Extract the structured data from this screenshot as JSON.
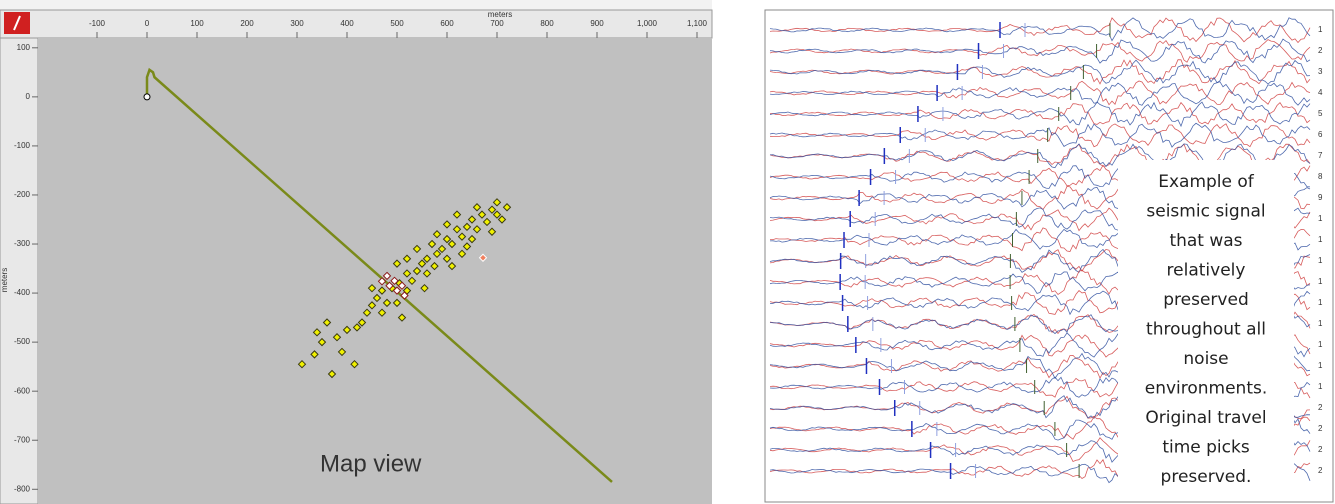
{
  "chart_data": {
    "type": "scatter",
    "annotation": "Map view",
    "xlabel": "meters",
    "ylabel": "meters",
    "xlim": [
      -218,
      1130
    ],
    "ylim": [
      -830,
      120
    ],
    "xticks": [
      -100,
      0,
      100,
      200,
      300,
      400,
      500,
      600,
      700,
      800,
      900,
      {
        "value": 1000,
        "label": "1,000"
      },
      {
        "value": 1100,
        "label": "1,100"
      }
    ],
    "yticks": [
      100,
      0,
      -100,
      -200,
      -300,
      -400,
      -500,
      -600,
      -700,
      -800
    ],
    "grid": false,
    "background": "#c0c0c0",
    "series": [
      {
        "mode": "line",
        "color": "#7a8a1a",
        "marker_start": "circle",
        "x": [
          0,
          0,
          5,
          12,
          15,
          930
        ],
        "values": [
          0,
          40,
          55,
          50,
          40,
          -785
        ]
      },
      {
        "mode": "points",
        "color": "#f0f000",
        "edgecolor": "#3a3a10",
        "x": [
          700,
          720,
          690,
          670,
          710,
          680,
          650,
          640,
          660,
          690,
          700,
          620,
          630,
          650,
          600,
          610,
          640,
          590,
          570,
          580,
          600,
          560,
          550,
          575,
          540,
          520,
          560,
          530,
          505,
          490,
          520,
          470,
          460,
          480,
          500,
          450,
          440,
          470,
          510,
          430,
          420,
          400,
          380,
          350,
          335,
          310,
          390,
          415,
          370,
          360,
          340,
          600,
          660,
          620,
          580,
          540,
          500,
          610,
          555,
          450,
          520,
          630
        ],
        "values": [
          -215,
          -225,
          -230,
          -240,
          -250,
          -255,
          -250,
          -265,
          -270,
          -275,
          -240,
          -270,
          -285,
          -290,
          -290,
          -300,
          -305,
          -310,
          -300,
          -320,
          -330,
          -330,
          -340,
          -345,
          -355,
          -360,
          -360,
          -375,
          -380,
          -390,
          -395,
          -395,
          -410,
          -420,
          -420,
          -425,
          -440,
          -440,
          -450,
          -460,
          -470,
          -475,
          -490,
          -500,
          -525,
          -545,
          -520,
          -545,
          -565,
          -460,
          -480,
          -260,
          -225,
          -240,
          -280,
          -310,
          -340,
          -345,
          -390,
          -390,
          -330,
          -320
        ]
      },
      {
        "mode": "points",
        "color": "#ffffff",
        "edgecolor": "#8b1a1a",
        "x": [
          470,
          485,
          500,
          515,
          480,
          495,
          510
        ],
        "values": [
          -376,
          -385,
          -395,
          -405,
          -365,
          -375,
          -385
        ]
      },
      {
        "mode": "points",
        "color": "#f08060",
        "edgecolor": "#ffffff",
        "x": [
          672
        ],
        "values": [
          -328
        ]
      }
    ]
  },
  "seismic_panel": {
    "annotation": [
      "Example of",
      "seismic signal",
      "that was",
      "relatively",
      "preserved",
      "throughout all",
      "noise",
      "environments.",
      "Original travel",
      "time picks",
      "preserved."
    ],
    "trace_labels": [
      "1",
      "2",
      "3",
      "4",
      "5",
      "6",
      "7",
      "8",
      "9",
      "1",
      "1",
      "1",
      "1",
      "1",
      "1",
      "1",
      "1",
      "1",
      "2",
      "2",
      "2",
      "2"
    ]
  }
}
